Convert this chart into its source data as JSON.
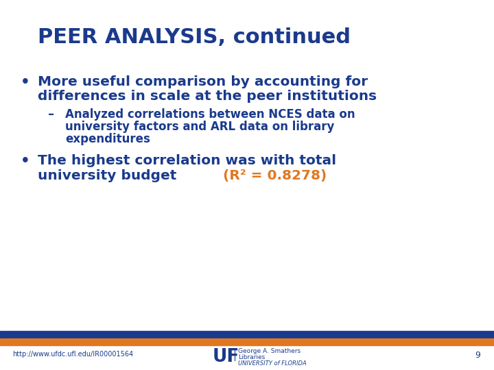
{
  "title": "PEER ANALYSIS, continued",
  "title_color": "#1a3a8c",
  "title_fontsize": 22,
  "bg_color": "#ffffff",
  "bullet1_line1": "More useful comparison by accounting for",
  "bullet1_line2": "differences in scale at the peer institutions",
  "bullet1_color": "#1a3a8c",
  "bullet1_fontsize": 14.5,
  "sub_dash": "–",
  "sub_line1": "Analyzed correlations between NCES data on",
  "sub_line2": "university factors and ARL data on library",
  "sub_line3": "expenditures",
  "sub_color": "#1a3a8c",
  "sub_fontsize": 12,
  "bullet2_line1": "The highest correlation was with total",
  "bullet2_line2_blue": "university budget ",
  "bullet2_line2_orange": "(R² = 0.8278)",
  "bullet2_color": "#1a3a8c",
  "bullet2_orange_color": "#e07820",
  "bullet2_fontsize": 14.5,
  "footer_url": "http://www.ufdc.ufl.edu/IR00001564",
  "footer_color": "#1a3a8c",
  "footer_uf": "UF",
  "footer_logo_text1": "George A. Smathers",
  "footer_logo_text2": "Libraries",
  "footer_logo_text3": "UNIVERSITY of FLORIDA",
  "footer_page": "9",
  "bar_blue_color": "#1a3a8c",
  "bar_orange_color": "#e07820"
}
